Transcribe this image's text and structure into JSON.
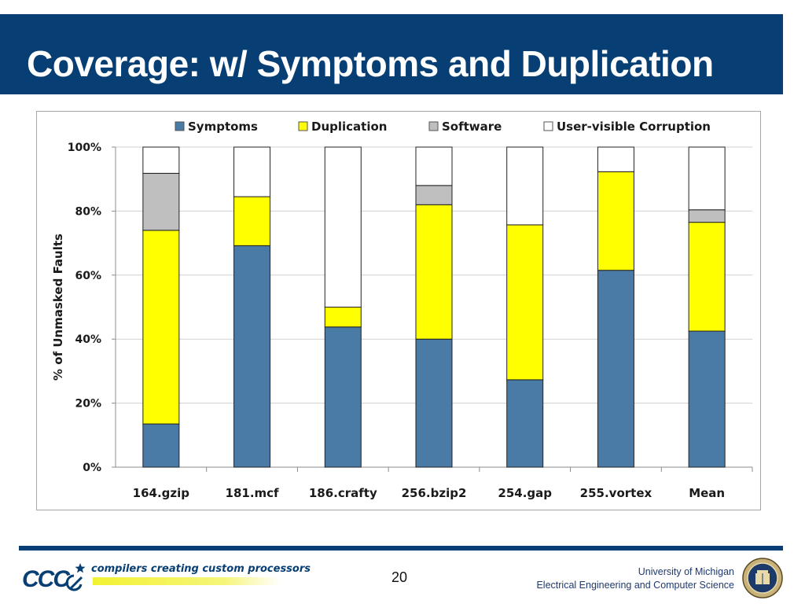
{
  "slide": {
    "title": "Coverage: w/ Symptoms and Duplication",
    "page_number": "20"
  },
  "footer": {
    "logo_text": "CCC",
    "tagline": "compilers creating custom processors",
    "university": "University of Michigan",
    "department": "Electrical Engineering and Computer Science"
  },
  "colors": {
    "title_bar": "#073f74",
    "symptoms": "#4a7ba7",
    "duplication": "#ffff00",
    "software": "#bfbfbf",
    "corruption": "#ffffff"
  },
  "chart_data": {
    "type": "bar",
    "stacked": true,
    "title": "",
    "xlabel": "",
    "ylabel": "% of Unmasked Faults",
    "ylim": [
      0,
      100
    ],
    "yticks": [
      "0%",
      "20%",
      "40%",
      "60%",
      "80%",
      "100%"
    ],
    "categories": [
      "164.gzip",
      "181.mcf",
      "186.crafty",
      "256.bzip2",
      "254.gap",
      "255.vortex",
      "Mean"
    ],
    "legend_position": "top",
    "series": [
      {
        "name": "Symptoms",
        "color": "#4a7ba7",
        "values": [
          13.5,
          69.2,
          43.8,
          40.0,
          27.3,
          61.5,
          42.5
        ]
      },
      {
        "name": "Duplication",
        "color": "#ffff00",
        "values": [
          60.5,
          15.3,
          6.2,
          42.0,
          48.4,
          30.8,
          34.0
        ]
      },
      {
        "name": "Software",
        "color": "#bfbfbf",
        "values": [
          17.8,
          0.0,
          0.0,
          6.0,
          0.0,
          0.0,
          3.9
        ]
      },
      {
        "name": "User-visible Corruption",
        "color": "#ffffff",
        "values": [
          8.2,
          15.5,
          50.0,
          12.0,
          24.3,
          7.7,
          19.6
        ]
      }
    ]
  }
}
